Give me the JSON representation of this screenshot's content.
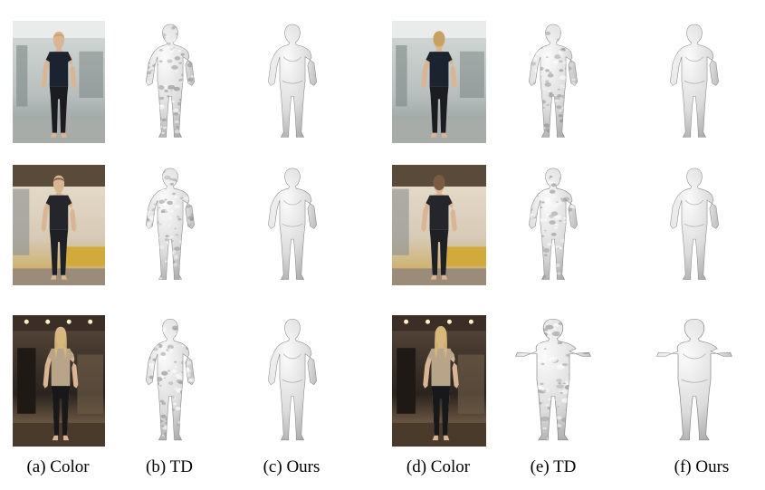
{
  "figure": {
    "captions": [
      "(a) Color",
      "(b) TD",
      "(c) Ours",
      "(d) Color",
      "(e) TD",
      "(f) Ours"
    ],
    "rows": [
      {
        "subject": "young man with blond hair, navy t-shirt, black trousers, office background",
        "scene": "office",
        "shirt_color": "#1c2330",
        "pants_color": "#1a1c22",
        "hair_color": "#c8a060",
        "bg_colors": [
          "#b8bfbe",
          "#d6dbd8",
          "#8d9693"
        ]
      },
      {
        "subject": "man with beard, dark printed t-shirt, black shorts, office with yellow sofa",
        "scene": "office-sofa",
        "shirt_color": "#24262c",
        "pants_color": "#1e2026",
        "hair_color": "#7a5a40",
        "bg_colors": [
          "#d7cbb8",
          "#e9dfcc",
          "#c9a54a"
        ]
      },
      {
        "subject": "woman with long blonde hair, beige cardigan, black trousers, dim lobby",
        "scene": "lobby",
        "shirt_color": "#b8a488",
        "pants_color": "#18181a",
        "hair_color": "#d7b77a",
        "bg_colors": [
          "#2a231e",
          "#5a4a3c",
          "#a08060"
        ]
      }
    ]
  }
}
